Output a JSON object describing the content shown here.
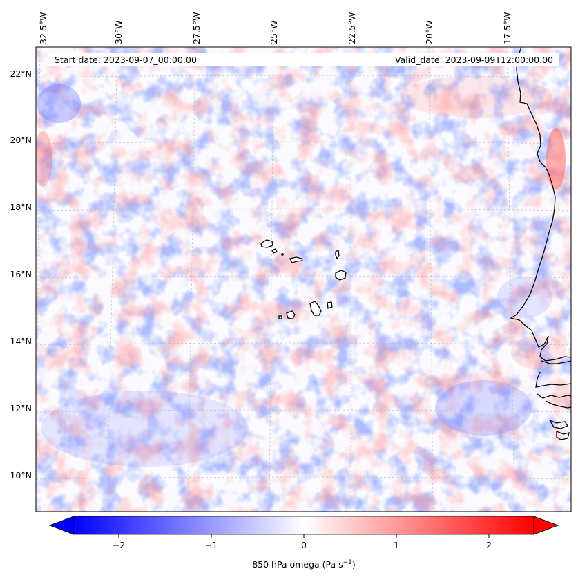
{
  "map": {
    "start_label": "Start date: 2023-09-07_00:00:00",
    "valid_label": "Valid_date: 2023-09-09T12:00:00.00",
    "lon_ticks": [
      "32.5°W",
      "30°W",
      "27.5°W",
      "25°W",
      "22.5°W",
      "20°W",
      "17.5°W"
    ],
    "lat_ticks": [
      "22°N",
      "20°N",
      "18°N",
      "16°N",
      "14°N",
      "12°N",
      "10°N"
    ],
    "extent": {
      "lon_min": -32.6,
      "lon_max": -15.4,
      "lat_min": 8.9,
      "lat_max": 22.7
    },
    "features": [
      "Cape Verde islands",
      "West African coastline"
    ]
  },
  "colorbar": {
    "label_main": "850 hPa omega (Pa s",
    "label_sup": "−1",
    "label_end": ")",
    "ticks": [
      "−2",
      "−1",
      "0",
      "1",
      "2"
    ],
    "range": [
      -2.7,
      2.7
    ],
    "colors": {
      "negative": "#0000ff",
      "zero": "#ffffff",
      "positive": "#ff0000"
    }
  }
}
